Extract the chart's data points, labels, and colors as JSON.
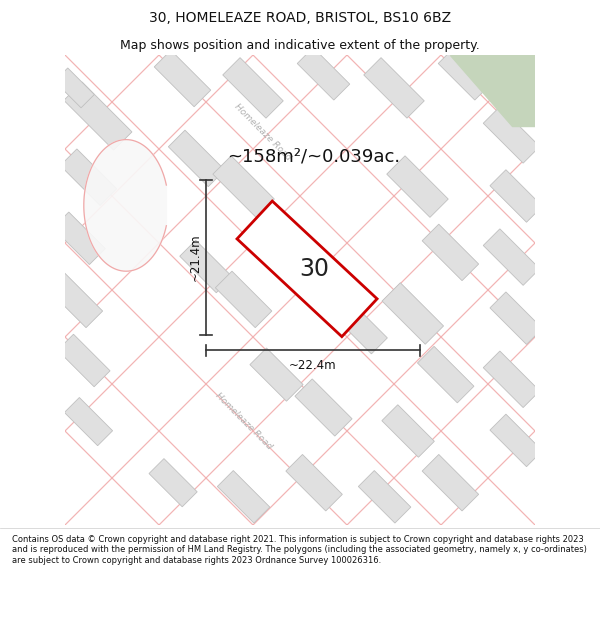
{
  "title": "30, HOMELEAZE ROAD, BRISTOL, BS10 6BZ",
  "subtitle": "Map shows position and indicative extent of the property.",
  "area_label": "~158m²/~0.039ac.",
  "width_label": "~22.4m",
  "height_label": "~21.4m",
  "house_number": "30",
  "footer": "Contains OS data © Crown copyright and database right 2021. This information is subject to Crown copyright and database rights 2023 and is reproduced with the permission of HM Land Registry. The polygons (including the associated geometry, namely x, y co-ordinates) are subject to Crown copyright and database rights 2023 Ordnance Survey 100026316.",
  "map_bg": "#f2f2f2",
  "red_color": "#cc0000",
  "bld_fill": "#e0e0e0",
  "bld_edge": "#c0c0c0",
  "road_line_color": "#f0a8a8",
  "road_label_color": "#b0b0b0",
  "green_corner": "#c5d5bb",
  "title_fontsize": 10,
  "subtitle_fontsize": 9,
  "footer_fontsize": 6.0
}
